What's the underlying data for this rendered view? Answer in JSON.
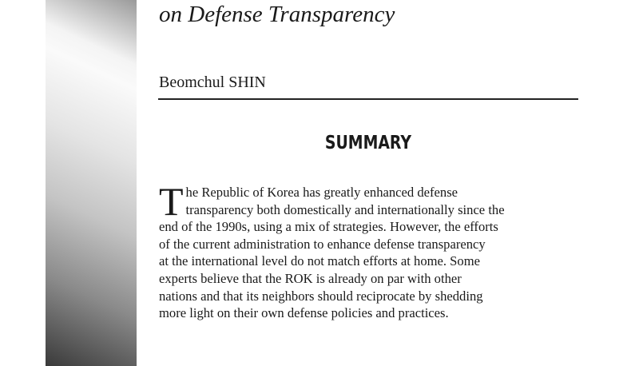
{
  "title": "on Defense Transparency",
  "author": "Beomchul SHIN",
  "summary_heading": "SUMMARY",
  "body": {
    "drop_cap": "T",
    "lines": [
      "he Republic of Korea has greatly enhanced defense",
      "transparency both domestically and internationally since the",
      "end of the 1990s, using a mix of strategies.  However, the efforts",
      "of the current administration to enhance defense transparency",
      "at the international level do not match efforts at home. Some",
      "experts believe that the ROK is already on par with other",
      "nations and that its neighbors should reciprocate by shedding",
      "more light on their own defense policies and practices."
    ]
  }
}
